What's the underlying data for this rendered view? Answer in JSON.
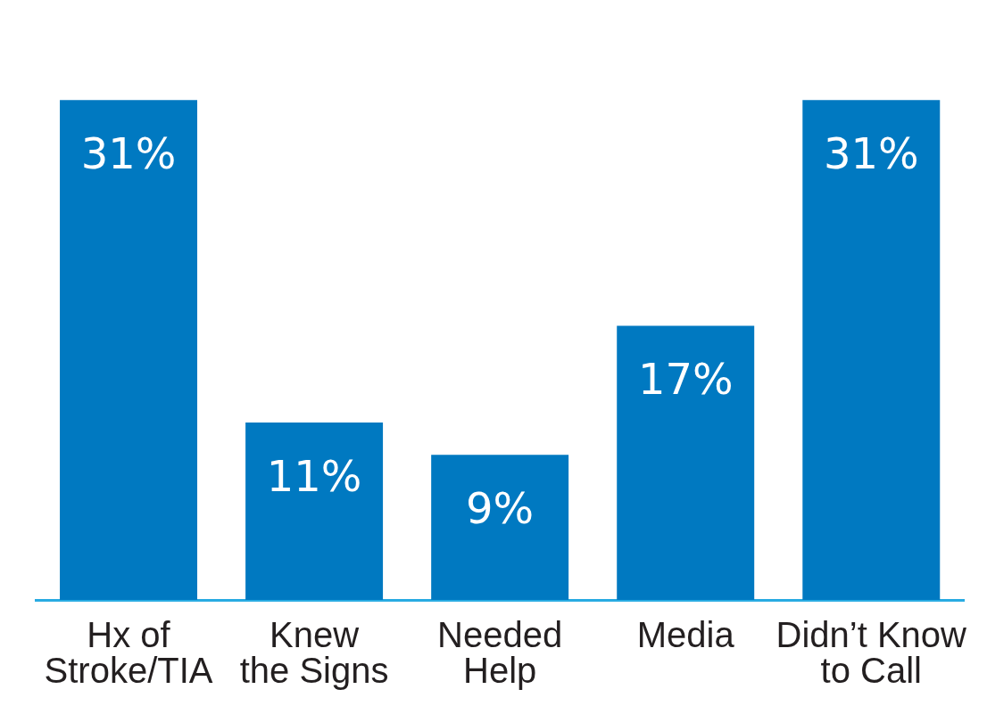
{
  "chart_data": {
    "type": "bar",
    "categories": [
      "Hx of\nStroke/TIA",
      "Knew\nthe Signs",
      "Needed\nHelp",
      "Media",
      "Didn’t Know\nto Call"
    ],
    "values": [
      31,
      11,
      9,
      17,
      31
    ],
    "color": "#0079c1",
    "value_labels": [
      "31%",
      "11%",
      "9%",
      "17%",
      "31%"
    ],
    "grid": false,
    "legend": false
  }
}
